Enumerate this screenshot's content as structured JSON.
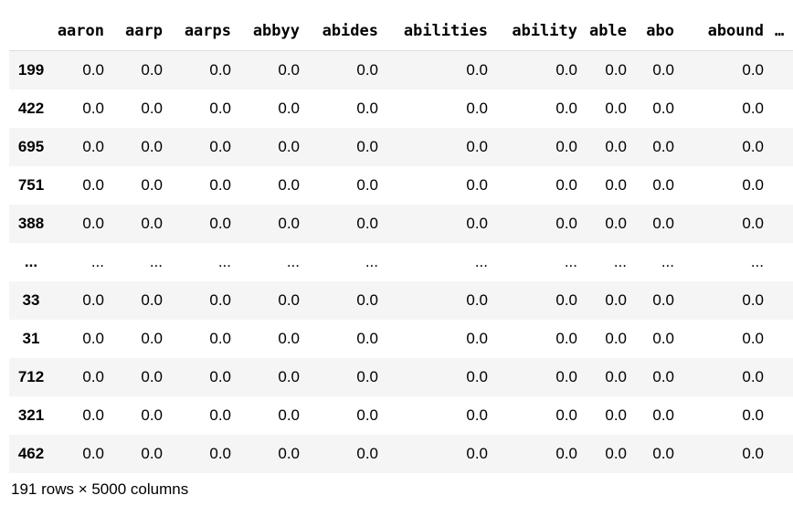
{
  "table": {
    "columns": [
      "aaron",
      "aarp",
      "aarps",
      "abbyy",
      "abides",
      "abilities",
      "ability",
      "able",
      "abo",
      "abound",
      "…"
    ],
    "rows": [
      {
        "index": "199",
        "values": [
          "0.0",
          "0.0",
          "0.0",
          "0.0",
          "0.0",
          "0.0",
          "0.0",
          "0.0",
          "0.0",
          "0.0"
        ]
      },
      {
        "index": "422",
        "values": [
          "0.0",
          "0.0",
          "0.0",
          "0.0",
          "0.0",
          "0.0",
          "0.0",
          "0.0",
          "0.0",
          "0.0"
        ]
      },
      {
        "index": "695",
        "values": [
          "0.0",
          "0.0",
          "0.0",
          "0.0",
          "0.0",
          "0.0",
          "0.0",
          "0.0",
          "0.0",
          "0.0"
        ]
      },
      {
        "index": "751",
        "values": [
          "0.0",
          "0.0",
          "0.0",
          "0.0",
          "0.0",
          "0.0",
          "0.0",
          "0.0",
          "0.0",
          "0.0"
        ]
      },
      {
        "index": "388",
        "values": [
          "0.0",
          "0.0",
          "0.0",
          "0.0",
          "0.0",
          "0.0",
          "0.0",
          "0.0",
          "0.0",
          "0.0"
        ]
      },
      {
        "index": "...",
        "values": [
          "...",
          "...",
          "...",
          "...",
          "...",
          "...",
          "...",
          "...",
          "...",
          "..."
        ]
      },
      {
        "index": "33",
        "values": [
          "0.0",
          "0.0",
          "0.0",
          "0.0",
          "0.0",
          "0.0",
          "0.0",
          "0.0",
          "0.0",
          "0.0"
        ]
      },
      {
        "index": "31",
        "values": [
          "0.0",
          "0.0",
          "0.0",
          "0.0",
          "0.0",
          "0.0",
          "0.0",
          "0.0",
          "0.0",
          "0.0"
        ]
      },
      {
        "index": "712",
        "values": [
          "0.0",
          "0.0",
          "0.0",
          "0.0",
          "0.0",
          "0.0",
          "0.0",
          "0.0",
          "0.0",
          "0.0"
        ]
      },
      {
        "index": "321",
        "values": [
          "0.0",
          "0.0",
          "0.0",
          "0.0",
          "0.0",
          "0.0",
          "0.0",
          "0.0",
          "0.0",
          "0.0"
        ]
      },
      {
        "index": "462",
        "values": [
          "0.0",
          "0.0",
          "0.0",
          "0.0",
          "0.0",
          "0.0",
          "0.0",
          "0.0",
          "0.0",
          "0.0"
        ]
      }
    ]
  },
  "footer": {
    "shape_text": "191 rows × 5000 columns"
  }
}
